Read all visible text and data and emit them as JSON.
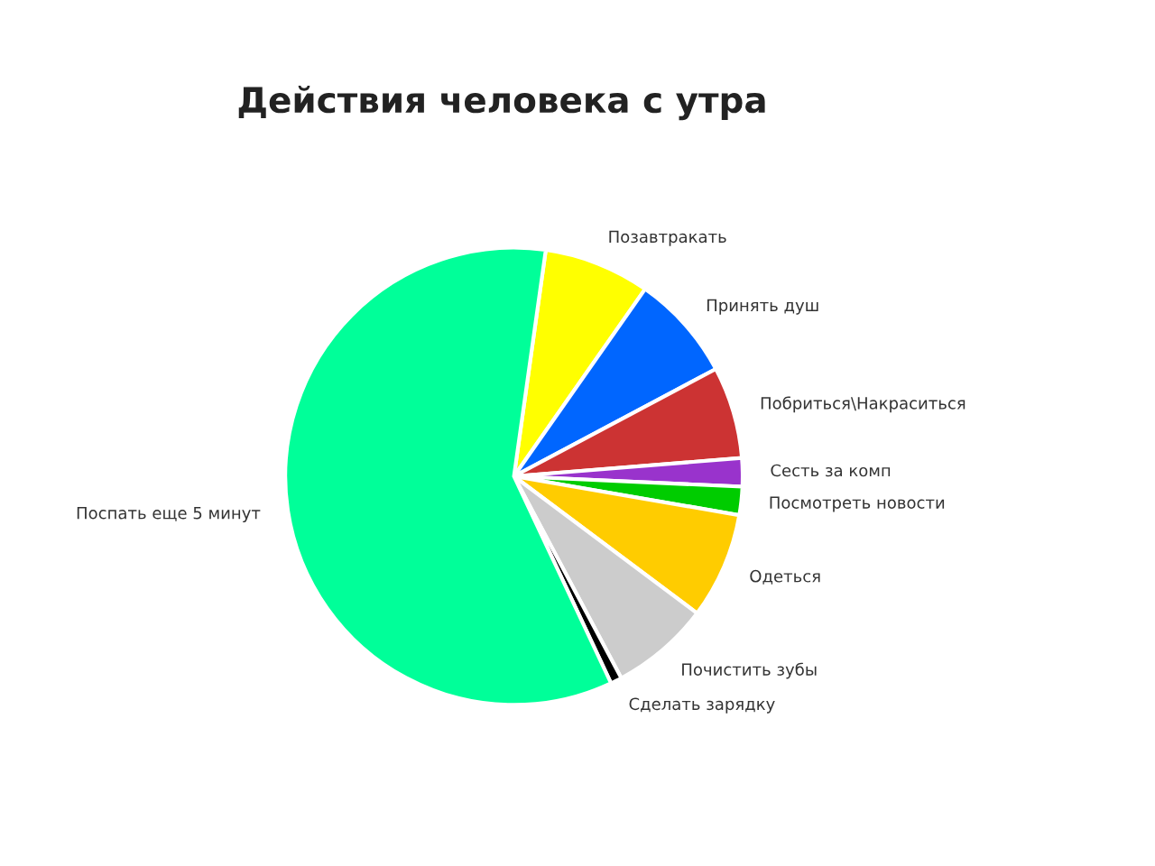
{
  "chart_data": {
    "type": "pie",
    "title": "Действия человека с утра",
    "categories": [
      "Позавтракать",
      "Принять душ",
      "Побриться\\Накраситься",
      "Сесть за комп",
      "Посмотреть новости",
      "Одеться",
      "Почистить зубы",
      "Сделать зарядку",
      "Поспать еще 5 минут"
    ],
    "values": [
      7.5,
      7.5,
      6.5,
      2,
      2,
      7.5,
      7,
      0.8,
      59.2
    ],
    "colors": [
      "#ffff00",
      "#0066ff",
      "#cc3333",
      "#9933cc",
      "#00cc00",
      "#ffcc00",
      "#cccccc",
      "#000000",
      "#00ff99"
    ]
  }
}
